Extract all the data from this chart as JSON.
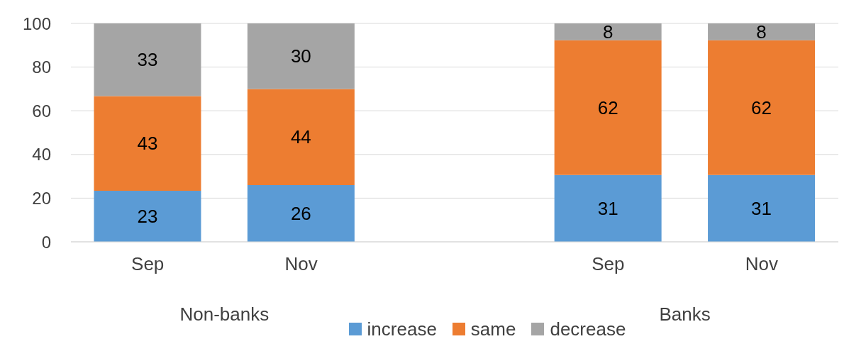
{
  "chart_data": {
    "type": "bar",
    "stacked": true,
    "categories": [
      "Sep",
      "Nov",
      null,
      "Sep",
      "Nov"
    ],
    "series": [
      {
        "name": "increase",
        "color": "#5b9bd5",
        "values": [
          23.4,
          26,
          null,
          30.6,
          30.6
        ],
        "value_labels": [
          "23",
          "26",
          null,
          "31",
          "31"
        ]
      },
      {
        "name": "same",
        "color": "#ed7d31",
        "values": [
          43.3,
          44,
          null,
          61.7,
          61.7
        ],
        "value_labels": [
          "43",
          "44",
          null,
          "62",
          "62"
        ]
      },
      {
        "name": "decrease",
        "color": "#a5a5a5",
        "values": [
          33.3,
          30,
          null,
          7.7,
          7.7
        ],
        "value_labels": [
          "33",
          "30",
          null,
          "8",
          "8"
        ]
      }
    ],
    "ylim": [
      0,
      100
    ],
    "yticks": [
      0,
      20,
      40,
      60,
      80,
      100
    ],
    "grid": "y",
    "legend": "bottom",
    "annotations": [
      "Non-banks",
      "Banks"
    ]
  }
}
